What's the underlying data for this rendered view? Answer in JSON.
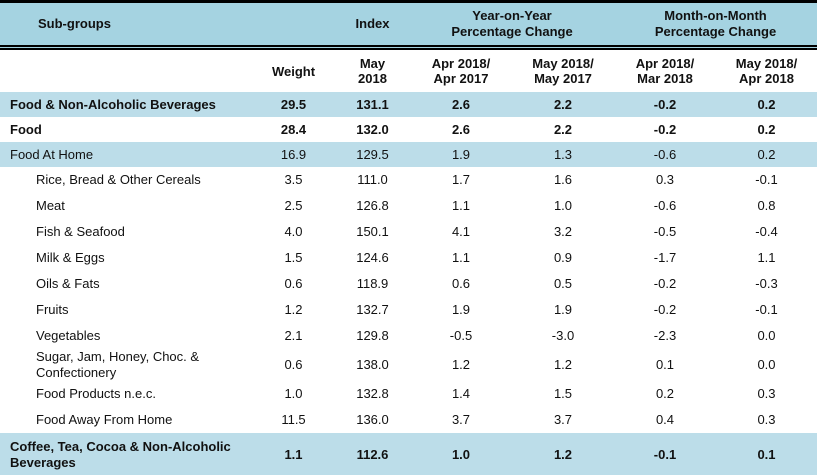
{
  "colors": {
    "header_bg": "#a5d3e1",
    "band_bg": "#bcdde9",
    "border": "#000000",
    "text": "#111111"
  },
  "chart_data": {
    "type": "table",
    "header_row1": {
      "subgroups": "Sub-groups",
      "index": "Index",
      "yoy": "Year-on-Year\nPercentage Change",
      "mom": "Month-on-Month\nPercentage Change"
    },
    "header_row2": {
      "weight": "Weight",
      "index_month": "May\n2018",
      "yoy_a": "Apr 2018/\nApr 2017",
      "yoy_b": "May 2018/\nMay 2017",
      "mom_a": "Apr 2018/\nMar 2018",
      "mom_b": "May 2018/\nApr 2018"
    },
    "columns": [
      "Sub-groups",
      "Weight",
      "Index May 2018",
      "YoY % Change Apr 2018/Apr 2017",
      "YoY % Change May 2018/May 2017",
      "MoM % Change Apr 2018/Mar 2018",
      "MoM % Change May 2018/Apr 2018"
    ],
    "rows": [
      {
        "label": "Food & Non-Alcoholic Beverages",
        "weight": "29.5",
        "index": "131.1",
        "yoy_a": "2.6",
        "yoy_b": "2.2",
        "mom_a": "-0.2",
        "mom_b": "0.2",
        "band": true,
        "bold": true,
        "indent": false,
        "tall": false
      },
      {
        "label": "Food",
        "weight": "28.4",
        "index": "132.0",
        "yoy_a": "2.6",
        "yoy_b": "2.2",
        "mom_a": "-0.2",
        "mom_b": "0.2",
        "band": false,
        "bold": true,
        "indent": false,
        "tall": false
      },
      {
        "label": "Food At Home",
        "weight": "16.9",
        "index": "129.5",
        "yoy_a": "1.9",
        "yoy_b": "1.3",
        "mom_a": "-0.6",
        "mom_b": "0.2",
        "band": true,
        "bold": false,
        "indent": false,
        "tall": false
      },
      {
        "label": "Rice, Bread & Other Cereals",
        "weight": "3.5",
        "index": "111.0",
        "yoy_a": "1.7",
        "yoy_b": "1.6",
        "mom_a": "0.3",
        "mom_b": "-0.1",
        "band": false,
        "bold": false,
        "indent": true,
        "tall": false
      },
      {
        "label": "Meat",
        "weight": "2.5",
        "index": "126.8",
        "yoy_a": "1.1",
        "yoy_b": "1.0",
        "mom_a": "-0.6",
        "mom_b": "0.8",
        "band": false,
        "bold": false,
        "indent": true,
        "tall": false
      },
      {
        "label": "Fish & Seafood",
        "weight": "4.0",
        "index": "150.1",
        "yoy_a": "4.1",
        "yoy_b": "3.2",
        "mom_a": "-0.5",
        "mom_b": "-0.4",
        "band": false,
        "bold": false,
        "indent": true,
        "tall": false
      },
      {
        "label": "Milk & Eggs",
        "weight": "1.5",
        "index": "124.6",
        "yoy_a": "1.1",
        "yoy_b": "0.9",
        "mom_a": "-1.7",
        "mom_b": "1.1",
        "band": false,
        "bold": false,
        "indent": true,
        "tall": false
      },
      {
        "label": "Oils & Fats",
        "weight": "0.6",
        "index": "118.9",
        "yoy_a": "0.6",
        "yoy_b": "0.5",
        "mom_a": "-0.2",
        "mom_b": "-0.3",
        "band": false,
        "bold": false,
        "indent": true,
        "tall": false
      },
      {
        "label": "Fruits",
        "weight": "1.2",
        "index": "132.7",
        "yoy_a": "1.9",
        "yoy_b": "1.9",
        "mom_a": "-0.2",
        "mom_b": "-0.1",
        "band": false,
        "bold": false,
        "indent": true,
        "tall": false
      },
      {
        "label": "Vegetables",
        "weight": "2.1",
        "index": "129.8",
        "yoy_a": "-0.5",
        "yoy_b": "-3.0",
        "mom_a": "-2.3",
        "mom_b": "0.0",
        "band": false,
        "bold": false,
        "indent": true,
        "tall": false
      },
      {
        "label": "Sugar, Jam, Honey, Choc. & Confectionery",
        "weight": "0.6",
        "index": "138.0",
        "yoy_a": "1.2",
        "yoy_b": "1.2",
        "mom_a": "0.1",
        "mom_b": "0.0",
        "band": false,
        "bold": false,
        "indent": true,
        "tall": false
      },
      {
        "label": "Food Products n.e.c.",
        "weight": "1.0",
        "index": "132.8",
        "yoy_a": "1.4",
        "yoy_b": "1.5",
        "mom_a": "0.2",
        "mom_b": "0.3",
        "band": false,
        "bold": false,
        "indent": true,
        "tall": false
      },
      {
        "label": "Food Away From Home",
        "weight": "11.5",
        "index": "136.0",
        "yoy_a": "3.7",
        "yoy_b": "3.7",
        "mom_a": "0.4",
        "mom_b": "0.3",
        "band": false,
        "bold": false,
        "indent": true,
        "tall": false
      },
      {
        "label": "Coffee, Tea, Cocoa & Non-Alcoholic Beverages",
        "weight": "1.1",
        "index": "112.6",
        "yoy_a": "1.0",
        "yoy_b": "1.2",
        "mom_a": "-0.1",
        "mom_b": "0.1",
        "band": true,
        "bold": true,
        "indent": false,
        "tall": true
      }
    ]
  }
}
